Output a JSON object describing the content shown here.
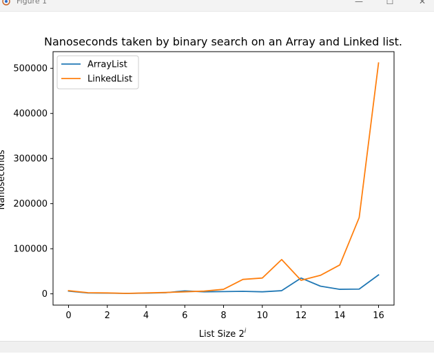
{
  "window": {
    "title": "Figure 1",
    "icon": "matplotlib-icon",
    "controls": [
      "minimize-icon",
      "maximize-icon",
      "close-icon"
    ]
  },
  "toolbar": {
    "tools": [
      "home-icon",
      "back-icon",
      "forward-icon",
      "pan-icon",
      "zoom-icon",
      "configure-icon",
      "save-icon"
    ]
  },
  "chart_data": {
    "type": "line",
    "title": "Nanoseconds taken by binary search on an Array and Linked list.",
    "xlabel": "List Size 2",
    "xlabel_superscript": "i",
    "ylabel": "Nanoseconds",
    "xlim": [
      -0.8,
      16.8
    ],
    "ylim": [
      -25000,
      537000
    ],
    "x_ticks": [
      0,
      2,
      4,
      6,
      8,
      10,
      12,
      14,
      16
    ],
    "y_ticks": [
      0,
      100000,
      200000,
      300000,
      400000,
      500000
    ],
    "x_tick_labels": [
      "0",
      "2",
      "4",
      "6",
      "8",
      "10",
      "12",
      "14",
      "16"
    ],
    "y_tick_labels": [
      "0",
      "100000",
      "200000",
      "300000",
      "400000",
      "500000"
    ],
    "grid": false,
    "legend_position": "top-left",
    "x": [
      0,
      1,
      2,
      3,
      4,
      5,
      6,
      7,
      8,
      9,
      10,
      11,
      12,
      13,
      14,
      15,
      16
    ],
    "series": [
      {
        "name": "ArrayList",
        "color": "#1f77b4",
        "values": [
          6000,
          2000,
          1500,
          1000,
          1500,
          2500,
          6500,
          4500,
          5000,
          5500,
          4500,
          7000,
          35000,
          17000,
          10000,
          10500,
          42000
        ]
      },
      {
        "name": "LinkedList",
        "color": "#ff7f0e",
        "values": [
          7000,
          2500,
          2000,
          1000,
          2000,
          3000,
          4500,
          6000,
          10000,
          32000,
          35000,
          76000,
          30000,
          41000,
          64000,
          169000,
          512000
        ]
      }
    ]
  }
}
